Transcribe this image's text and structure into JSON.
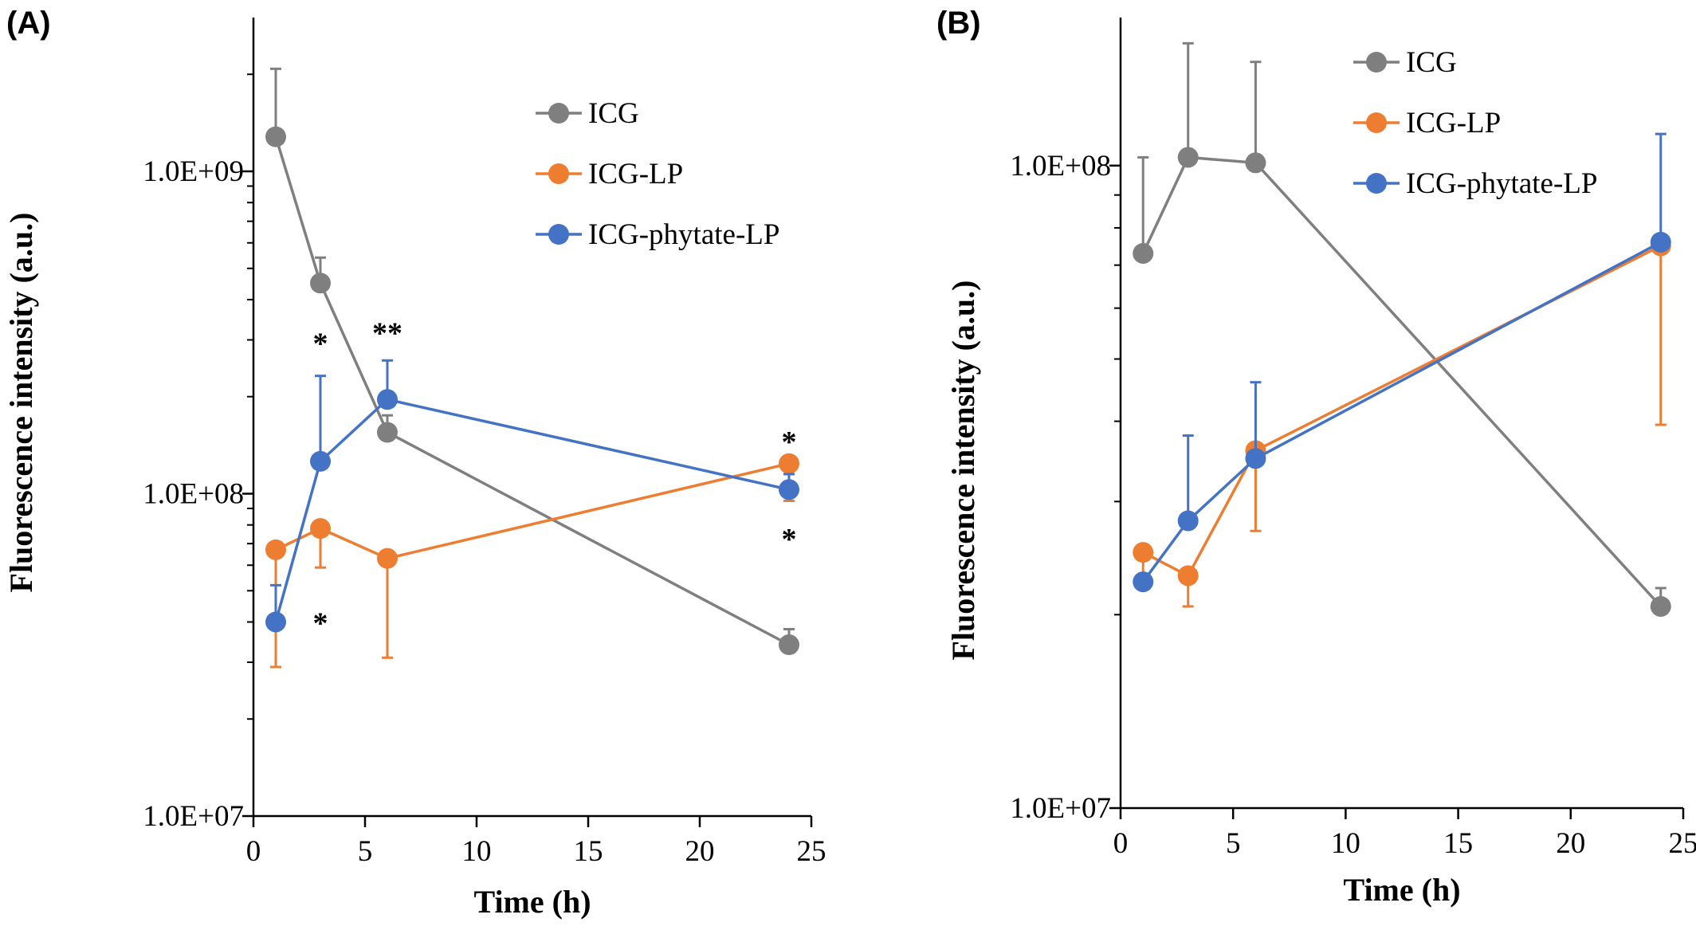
{
  "chart_data": [
    {
      "panel_label": "(A)",
      "type": "line",
      "xlabel": "Time (h)",
      "ylabel": "Fluorescence intensity  (a.u.)",
      "x_ticks": [
        0,
        5,
        10,
        15,
        20,
        25
      ],
      "xlim": [
        0,
        25
      ],
      "yscale": "log",
      "ylim": [
        10000000,
        3000000000
      ],
      "y_ticks": [
        {
          "value": 10000000,
          "label": "1.0E+07"
        },
        {
          "value": 100000000,
          "label": "1.0E+08"
        },
        {
          "value": 1000000000,
          "label": "1.0E+09"
        }
      ],
      "grid": false,
      "legend_position": "top-right",
      "series": [
        {
          "name": "ICG",
          "color": "#7f7f7f",
          "x": [
            1,
            3,
            6,
            24
          ],
          "y": [
            1280000000,
            450000000,
            155000000,
            34000000
          ],
          "err_upper": [
            2080000000,
            540000000,
            175000000,
            38000000
          ]
        },
        {
          "name": "ICG-LP",
          "color": "#ed7d31",
          "x": [
            1,
            3,
            6,
            24
          ],
          "y": [
            67000000,
            78000000,
            63000000,
            124000000
          ],
          "err_lower": [
            29000000,
            59000000,
            31000000,
            95000000
          ]
        },
        {
          "name": "ICG-phytate-LP",
          "color": "#4472c4",
          "x": [
            1,
            3,
            6,
            24
          ],
          "y": [
            40000000,
            126000000,
            196000000,
            103000000
          ],
          "err_upper": [
            52000000,
            232000000,
            259000000,
            115000000
          ]
        }
      ],
      "annotations": [
        {
          "text": "*",
          "x": 3,
          "y": 295000000
        },
        {
          "text": "**",
          "x": 6,
          "y": 318000000
        },
        {
          "text": "*",
          "x": 24,
          "y": 146000000
        },
        {
          "text": "*",
          "x": 3,
          "y": 40000000
        },
        {
          "text": "*",
          "x": 24,
          "y": 73000000
        }
      ]
    },
    {
      "panel_label": "(B)",
      "type": "line",
      "xlabel": "Time (h)",
      "ylabel": "Fluorescence intensity  (a.u.)",
      "x_ticks": [
        0,
        5,
        10,
        15,
        20,
        25
      ],
      "xlim": [
        0,
        25
      ],
      "yscale": "log",
      "ylim": [
        10000000,
        170000000
      ],
      "y_ticks": [
        {
          "value": 10000000,
          "label": "1.0E+07"
        },
        {
          "value": 100000000,
          "label": "1.0E+08"
        }
      ],
      "grid": false,
      "legend_position": "top-right",
      "series": [
        {
          "name": "ICG",
          "color": "#7f7f7f",
          "x": [
            1,
            3,
            6,
            24
          ],
          "y": [
            73000000,
            103000000,
            101000000,
            20600000
          ],
          "err_upper": [
            103000000,
            155000000,
            145000000,
            22000000
          ]
        },
        {
          "name": "ICG-LP",
          "color": "#ed7d31",
          "x": [
            1,
            3,
            6,
            24
          ],
          "y": [
            25000000,
            23000000,
            36000000,
            75000000
          ],
          "err_lower": [
            22000000,
            20600000,
            27000000,
            39500000
          ]
        },
        {
          "name": "ICG-phytate-LP",
          "color": "#4472c4",
          "x": [
            1,
            3,
            6,
            24
          ],
          "y": [
            22500000,
            28000000,
            35000000,
            76000000
          ],
          "err_upper": [
            22500000,
            38000000,
            46000000,
            112000000
          ]
        }
      ]
    }
  ]
}
